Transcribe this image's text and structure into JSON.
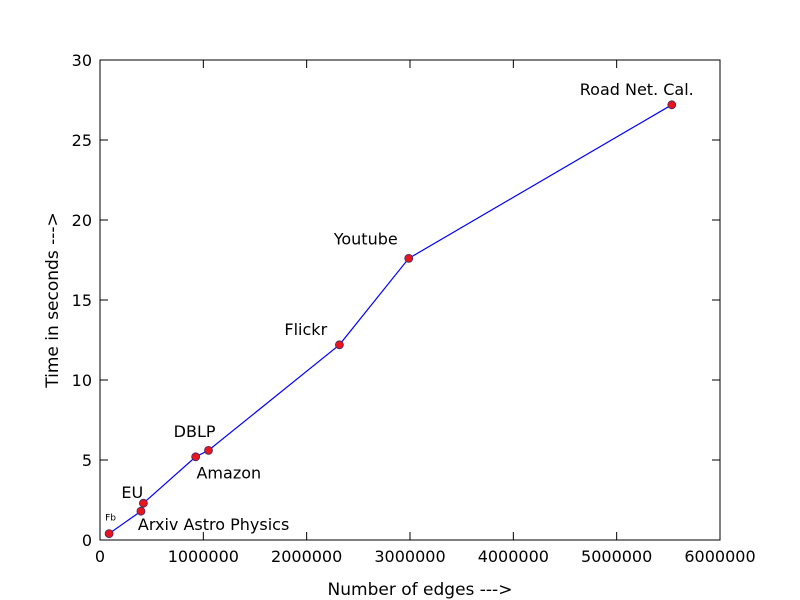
{
  "chart_data": {
    "type": "line",
    "title": "",
    "xlabel": "Number of edges --->",
    "ylabel": "Time in seconds --->",
    "xlim": [
      0,
      6000000
    ],
    "ylim": [
      0,
      30
    ],
    "xticks": [
      0,
      1000000,
      2000000,
      3000000,
      4000000,
      5000000,
      6000000
    ],
    "xtick_labels": [
      "0",
      "1000000",
      "2000000",
      "3000000",
      "4000000",
      "5000000",
      "6000000"
    ],
    "yticks": [
      0,
      5,
      10,
      15,
      20,
      25,
      30
    ],
    "ytick_labels": [
      "0",
      "5",
      "10",
      "15",
      "20",
      "25",
      "30"
    ],
    "grid": false,
    "line_color": "#0000ff",
    "marker_color": "#e8141e",
    "marker_edge_color": "#3a2a66",
    "points": [
      {
        "label": "Fb",
        "x": 88234,
        "y": 0.4
      },
      {
        "label": "Arxiv Astro Physics",
        "x": 396160,
        "y": 1.8
      },
      {
        "label": "EU",
        "x": 420045,
        "y": 2.3
      },
      {
        "label": "DBLP",
        "x": 925872,
        "y": 5.2
      },
      {
        "label": "Amazon",
        "x": 1049866,
        "y": 5.6
      },
      {
        "label": "Flickr",
        "x": 2316948,
        "y": 12.2
      },
      {
        "label": "Youtube",
        "x": 2987624,
        "y": 17.6
      },
      {
        "label": "Road Net. Cal.",
        "x": 5533214,
        "y": 27.2
      }
    ]
  }
}
